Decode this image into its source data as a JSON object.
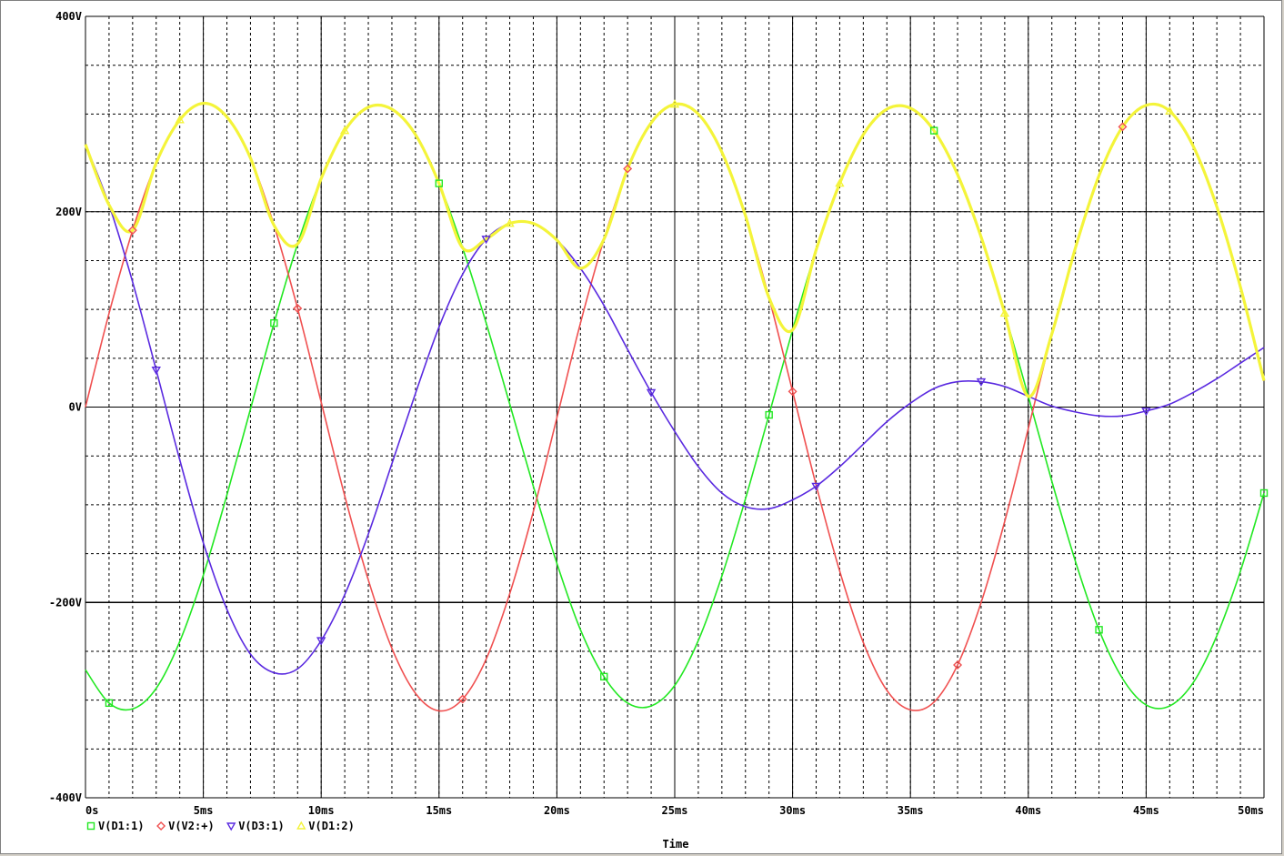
{
  "chart_data": {
    "type": "line",
    "title": "",
    "xlabel": "Time",
    "ylabel": "",
    "xlim": [
      0,
      50
    ],
    "ylim": [
      -400,
      400
    ],
    "x_unit": "ms",
    "y_unit": "V",
    "x_ticks": [
      0,
      5,
      10,
      15,
      20,
      25,
      30,
      35,
      40,
      45,
      50
    ],
    "x_tick_labels": [
      "0s",
      "5ms",
      "10ms",
      "15ms",
      "20ms",
      "25ms",
      "30ms",
      "35ms",
      "40ms",
      "45ms",
      "50ms"
    ],
    "y_ticks": [
      400,
      200,
      0,
      -200,
      -400
    ],
    "y_tick_labels": [
      "400V",
      "200V",
      "0V",
      "-200V",
      "-400V"
    ],
    "grid": true,
    "legend_position": "bottom-left",
    "series": [
      {
        "name": "V(D1:1)",
        "color": "#22e822",
        "marker": "square",
        "x": [
          0,
          1,
          2,
          3,
          4,
          5,
          6,
          7,
          8,
          9,
          10,
          11,
          12,
          13,
          14,
          15,
          16,
          17,
          18,
          19,
          20,
          21,
          22,
          23,
          24,
          25,
          26,
          27,
          28,
          29,
          30,
          31,
          32,
          33,
          34,
          35,
          36,
          37,
          38,
          39,
          40,
          41,
          42,
          43,
          44,
          45,
          46,
          47,
          48,
          49,
          50
        ],
        "y": [
          -269,
          -303,
          -309,
          -288,
          -240,
          -172,
          -90,
          -2,
          86,
          167,
          234,
          283,
          307,
          305,
          279,
          229,
          163,
          86,
          3,
          -81,
          -160,
          -228,
          -276,
          -303,
          -306,
          -285,
          -239,
          -173,
          -94,
          -8,
          79,
          161,
          229,
          279,
          305,
          306,
          283,
          238,
          174,
          96,
          11,
          -76,
          -158,
          -228,
          -278,
          -305,
          -306,
          -282,
          -234,
          -168,
          -88
        ]
      },
      {
        "name": "V(V2:+)",
        "color": "#f05050",
        "marker": "diamond",
        "x": [
          0,
          1,
          2,
          3,
          4,
          5,
          6,
          7,
          8,
          9,
          10,
          11,
          12,
          13,
          14,
          15,
          16,
          17,
          18,
          19,
          20,
          21,
          22,
          23,
          24,
          25,
          26,
          27,
          28,
          29,
          30,
          31,
          32,
          33,
          34,
          35,
          36,
          37,
          38,
          39,
          40,
          41,
          42,
          43,
          44,
          45,
          46,
          47,
          48,
          49,
          50
        ],
        "y": [
          0,
          96,
          181,
          250,
          294,
          311,
          297,
          255,
          186,
          101,
          5,
          -91,
          -177,
          -247,
          -293,
          -311,
          -299,
          -258,
          -191,
          -107,
          -11,
          86,
          172,
          244,
          291,
          310,
          300,
          261,
          196,
          112,
          16,
          -80,
          -168,
          -241,
          -290,
          -310,
          -302,
          -264,
          -200,
          -117,
          -22,
          75,
          163,
          237,
          287,
          309,
          303,
          267,
          205,
          123,
          27
        ]
      },
      {
        "name": "V(D3:1)",
        "color": "#5a2ae0",
        "marker": "triangle",
        "x": [
          0,
          1,
          2,
          3,
          4,
          5,
          6,
          7,
          8,
          9,
          10,
          11,
          12,
          13,
          14,
          15,
          16,
          17,
          18,
          19,
          20,
          21,
          22,
          23,
          24,
          25,
          26,
          27,
          28,
          29,
          30,
          31,
          32,
          33,
          34,
          35,
          36,
          37,
          38,
          39,
          40,
          41,
          42,
          43,
          44,
          45,
          46,
          47,
          48,
          49,
          50
        ],
        "y": [
          269,
          207,
          128,
          38,
          -54,
          -139,
          -207,
          -253,
          -272,
          -268,
          -239,
          -192,
          -130,
          -58,
          14,
          82,
          136,
          172,
          188,
          188,
          171,
          142,
          104,
          59,
          15,
          -25,
          -61,
          -88,
          -102,
          -104,
          -95,
          -81,
          -61,
          -38,
          -15,
          4,
          19,
          26,
          26,
          21,
          11,
          1,
          -5,
          -9,
          -9,
          -4,
          3,
          15,
          29,
          45,
          61
        ]
      },
      {
        "name": "V(D1:2)",
        "color": "#f4f43a",
        "marker": "triangle-open",
        "x": [
          0,
          1,
          2,
          3,
          4,
          5,
          6,
          7,
          8,
          9,
          10,
          11,
          12,
          13,
          14,
          15,
          16,
          17,
          18,
          19,
          20,
          21,
          22,
          23,
          24,
          25,
          26,
          27,
          28,
          29,
          30,
          31,
          32,
          33,
          34,
          35,
          36,
          37,
          38,
          39,
          40,
          41,
          42,
          43,
          44,
          45,
          46,
          47,
          48,
          49,
          50
        ],
        "y": [
          269,
          207,
          181,
          250,
          294,
          311,
          297,
          255,
          186,
          167,
          234,
          283,
          307,
          305,
          279,
          229,
          163,
          172,
          188,
          188,
          171,
          142,
          172,
          244,
          291,
          310,
          300,
          261,
          196,
          112,
          79,
          161,
          229,
          279,
          305,
          306,
          283,
          238,
          174,
          96,
          11,
          75,
          163,
          237,
          287,
          309,
          303,
          267,
          205,
          123,
          27
        ]
      }
    ]
  }
}
